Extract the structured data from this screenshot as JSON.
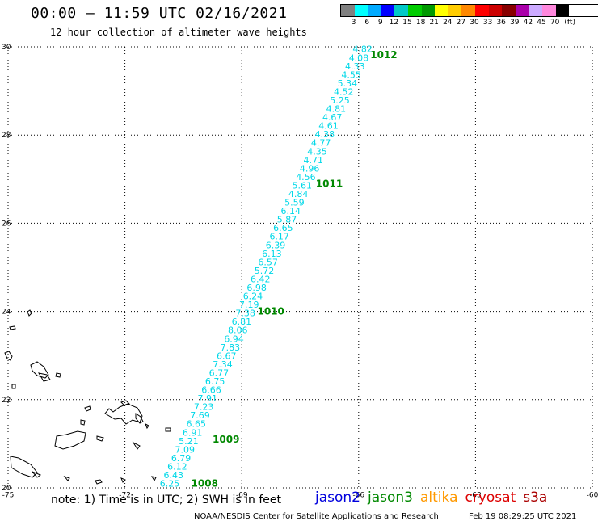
{
  "header": {
    "title": "00:00 – 11:59 UTC 02/16/2021",
    "subtitle": "12 hour collection of altimeter wave heights"
  },
  "legend": {
    "colors": [
      "#808080",
      "#00ffff",
      "#00aaff",
      "#0000ff",
      "#00c8c8",
      "#00cc00",
      "#009900",
      "#ffff00",
      "#ffcc00",
      "#ff8800",
      "#ff0000",
      "#cc0000",
      "#880000",
      "#aa00aa",
      "#ccaaff",
      "#ff88dd",
      "#000000"
    ],
    "labels": [
      "3",
      "6",
      "9",
      "12",
      "15",
      "18",
      "21",
      "24",
      "27",
      "30",
      "33",
      "36",
      "39",
      "42",
      "45",
      "70",
      "(ft)"
    ]
  },
  "axes": {
    "lon_ticks": [
      "-75",
      "-72",
      "-69",
      "-66",
      "-63",
      "-60"
    ],
    "lat_ticks": [
      "30",
      "28",
      "26",
      "24",
      "22",
      "20"
    ],
    "lon_values": [
      -75,
      -72,
      -69,
      -66,
      -63,
      -60
    ],
    "lat_values": [
      30,
      28,
      26,
      24,
      22,
      20
    ],
    "lon_range": [
      -75,
      -60
    ],
    "lat_range": [
      20,
      30
    ]
  },
  "track": {
    "color": "#00d8e8",
    "values": [
      "4.82",
      "4.08",
      "4.33",
      "4.55",
      "5.34",
      "4.52",
      "5.25",
      "4.81",
      "4.67",
      "4.61",
      "4.38",
      "4.77",
      "4.35",
      "4.71",
      "4.96",
      "4.56",
      "5.61",
      "4.84",
      "5.59",
      "6.14",
      "5.87",
      "6.65",
      "6.17",
      "6.39",
      "6.13",
      "6.57",
      "5.72",
      "6.42",
      "6.98",
      "6.24",
      "7.19",
      "7.38",
      "6.81",
      "8.06",
      "6.94",
      "7.83",
      "6.67",
      "7.34",
      "6.77",
      "6.75",
      "6.66",
      "7.91",
      "7.23",
      "7.69",
      "6.65",
      "6.91",
      "5.21",
      "7.09",
      "6.79",
      "6.12",
      "6.43",
      "6.25"
    ]
  },
  "pressure_labels": {
    "color": "#008800",
    "items": [
      {
        "text": "1012",
        "lon": -65.7,
        "lat": 29.82
      },
      {
        "text": "1011",
        "lon": -67.1,
        "lat": 26.9
      },
      {
        "text": "1010",
        "lon": -68.6,
        "lat": 24.0
      },
      {
        "text": "1009",
        "lon": -69.75,
        "lat": 21.1
      },
      {
        "text": "1008",
        "lon": -70.3,
        "lat": 20.1
      }
    ]
  },
  "note": "note: 1) Time is in UTC; 2) SWH is in feet",
  "satellites": [
    {
      "name": "jason2",
      "color": "#0000dd"
    },
    {
      "name": "jason3",
      "color": "#008800"
    },
    {
      "name": "altika",
      "color": "#ff9900"
    },
    {
      "name": "cryosat",
      "color": "#dd0000"
    },
    {
      "name": "s3a",
      "color": "#aa0000"
    }
  ],
  "credit": "NOAA/NESDIS Center for Satellite Applications and Research",
  "timestamp": "Feb 19 08:29:25 UTC 2021"
}
